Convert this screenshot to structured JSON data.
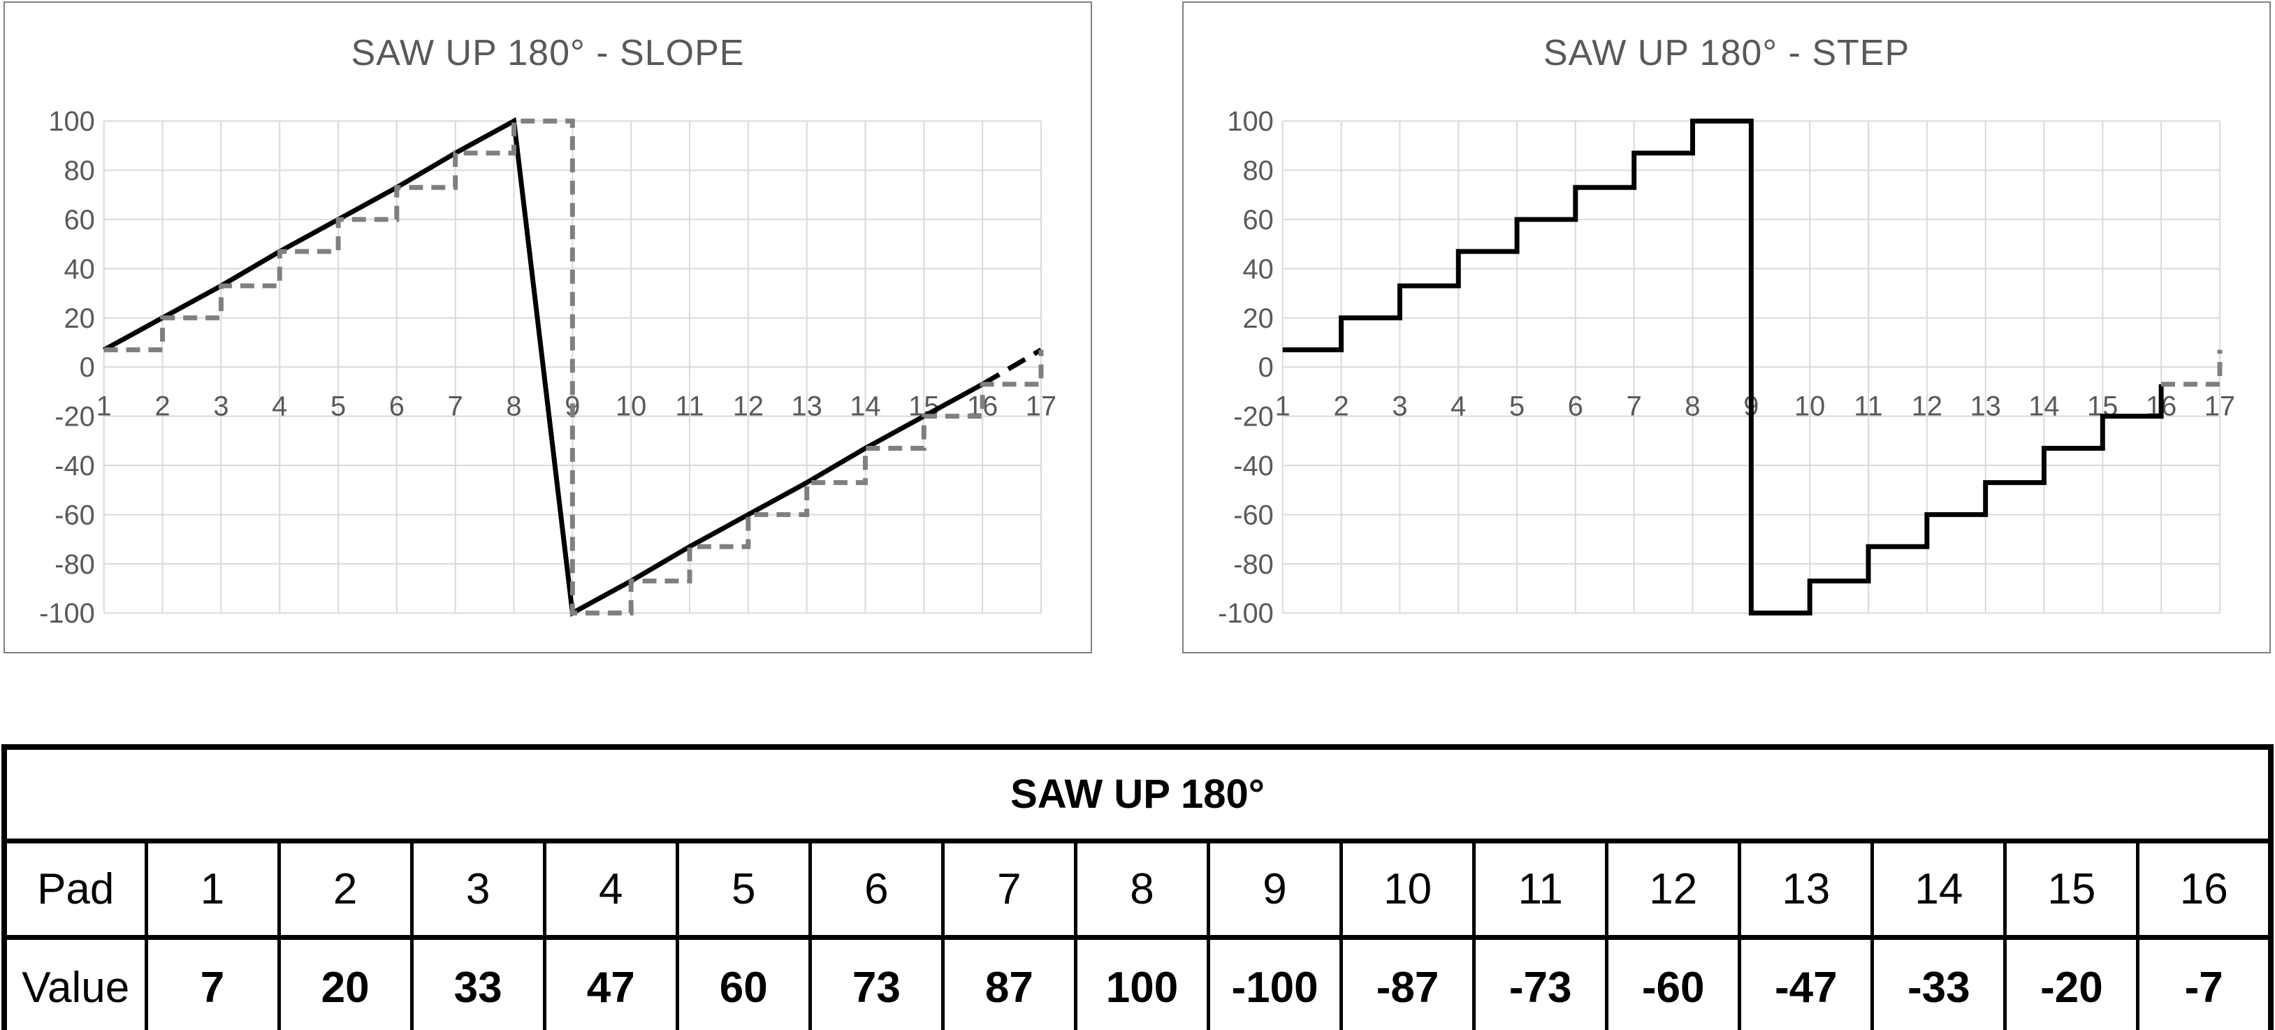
{
  "palette": {
    "grid": "#d9d9d9",
    "axis_text": "#595959",
    "chart_border": "#808080",
    "line_black": "#000000",
    "line_gray": "#7f7f7f",
    "table_border": "#000000",
    "background": "#ffffff"
  },
  "chart_data": [
    {
      "type": "line",
      "title": "SAW UP 180° - SLOPE",
      "xlim": [
        1,
        17
      ],
      "ylim": [
        -100,
        100
      ],
      "xticks": [
        1,
        2,
        3,
        4,
        5,
        6,
        7,
        8,
        9,
        10,
        11,
        12,
        13,
        14,
        15,
        16,
        17
      ],
      "yticks": [
        100,
        80,
        60,
        40,
        20,
        0,
        -20,
        -40,
        -60,
        -80,
        -100
      ],
      "grid": true,
      "legend": "none",
      "series": [
        {
          "name": "slope-line-solid",
          "mode": "linear",
          "color": "#000000",
          "width": 7,
          "dash": null,
          "points": [
            [
              1,
              7
            ],
            [
              2,
              20
            ],
            [
              3,
              33
            ],
            [
              4,
              47
            ],
            [
              5,
              60
            ],
            [
              6,
              73
            ],
            [
              7,
              87
            ],
            [
              8,
              100
            ],
            [
              9,
              -100
            ],
            [
              10,
              -87
            ],
            [
              11,
              -73
            ],
            [
              12,
              -60
            ],
            [
              13,
              -47
            ],
            [
              14,
              -33
            ],
            [
              15,
              -20
            ],
            [
              16,
              -7
            ]
          ]
        },
        {
          "name": "slope-line-next-cycle-dashed",
          "mode": "linear",
          "color": "#000000",
          "width": 7,
          "dash": [
            28,
            15
          ],
          "points": [
            [
              16,
              -7
            ],
            [
              17,
              7
            ]
          ]
        },
        {
          "name": "step-overlay-gray-dashed",
          "mode": "step",
          "color": "#7f7f7f",
          "width": 7,
          "dash": [
            20,
            12
          ],
          "points": [
            [
              1,
              7
            ],
            [
              2,
              20
            ],
            [
              3,
              33
            ],
            [
              4,
              47
            ],
            [
              5,
              60
            ],
            [
              6,
              73
            ],
            [
              7,
              87
            ],
            [
              8,
              100
            ],
            [
              9,
              -100
            ],
            [
              10,
              -87
            ],
            [
              11,
              -73
            ],
            [
              12,
              -60
            ],
            [
              13,
              -47
            ],
            [
              14,
              -33
            ],
            [
              15,
              -20
            ],
            [
              16,
              -7
            ],
            [
              17,
              7
            ]
          ]
        }
      ]
    },
    {
      "type": "line",
      "title": "SAW UP 180° - STEP",
      "xlim": [
        1,
        17
      ],
      "ylim": [
        -100,
        100
      ],
      "xticks": [
        1,
        2,
        3,
        4,
        5,
        6,
        7,
        8,
        9,
        10,
        11,
        12,
        13,
        14,
        15,
        16,
        17
      ],
      "yticks": [
        100,
        80,
        60,
        40,
        20,
        0,
        -20,
        -40,
        -60,
        -80,
        -100
      ],
      "grid": true,
      "legend": "none",
      "series": [
        {
          "name": "step-line-solid",
          "mode": "step",
          "color": "#000000",
          "width": 7,
          "dash": null,
          "points": [
            [
              1,
              7
            ],
            [
              2,
              20
            ],
            [
              3,
              33
            ],
            [
              4,
              47
            ],
            [
              5,
              60
            ],
            [
              6,
              73
            ],
            [
              7,
              87
            ],
            [
              8,
              100
            ],
            [
              9,
              -100
            ],
            [
              10,
              -87
            ],
            [
              11,
              -73
            ],
            [
              12,
              -60
            ],
            [
              13,
              -47
            ],
            [
              14,
              -33
            ],
            [
              15,
              -20
            ],
            [
              16,
              -7
            ]
          ]
        },
        {
          "name": "step-next-cycle-gray-dashed",
          "mode": "step",
          "color": "#7f7f7f",
          "width": 7,
          "dash": [
            20,
            12
          ],
          "points": [
            [
              16,
              -7
            ],
            [
              17,
              7
            ]
          ]
        }
      ]
    },
    {
      "type": "table",
      "title": "SAW UP 180°",
      "row_headers": [
        "Pad",
        "Value"
      ],
      "columns": [
        "1",
        "2",
        "3",
        "4",
        "5",
        "6",
        "7",
        "8",
        "9",
        "10",
        "11",
        "12",
        "13",
        "14",
        "15",
        "16"
      ],
      "values": [
        "7",
        "20",
        "33",
        "47",
        "60",
        "73",
        "87",
        "100",
        "-100",
        "-87",
        "-73",
        "-60",
        "-47",
        "-33",
        "-20",
        "-7"
      ]
    }
  ]
}
